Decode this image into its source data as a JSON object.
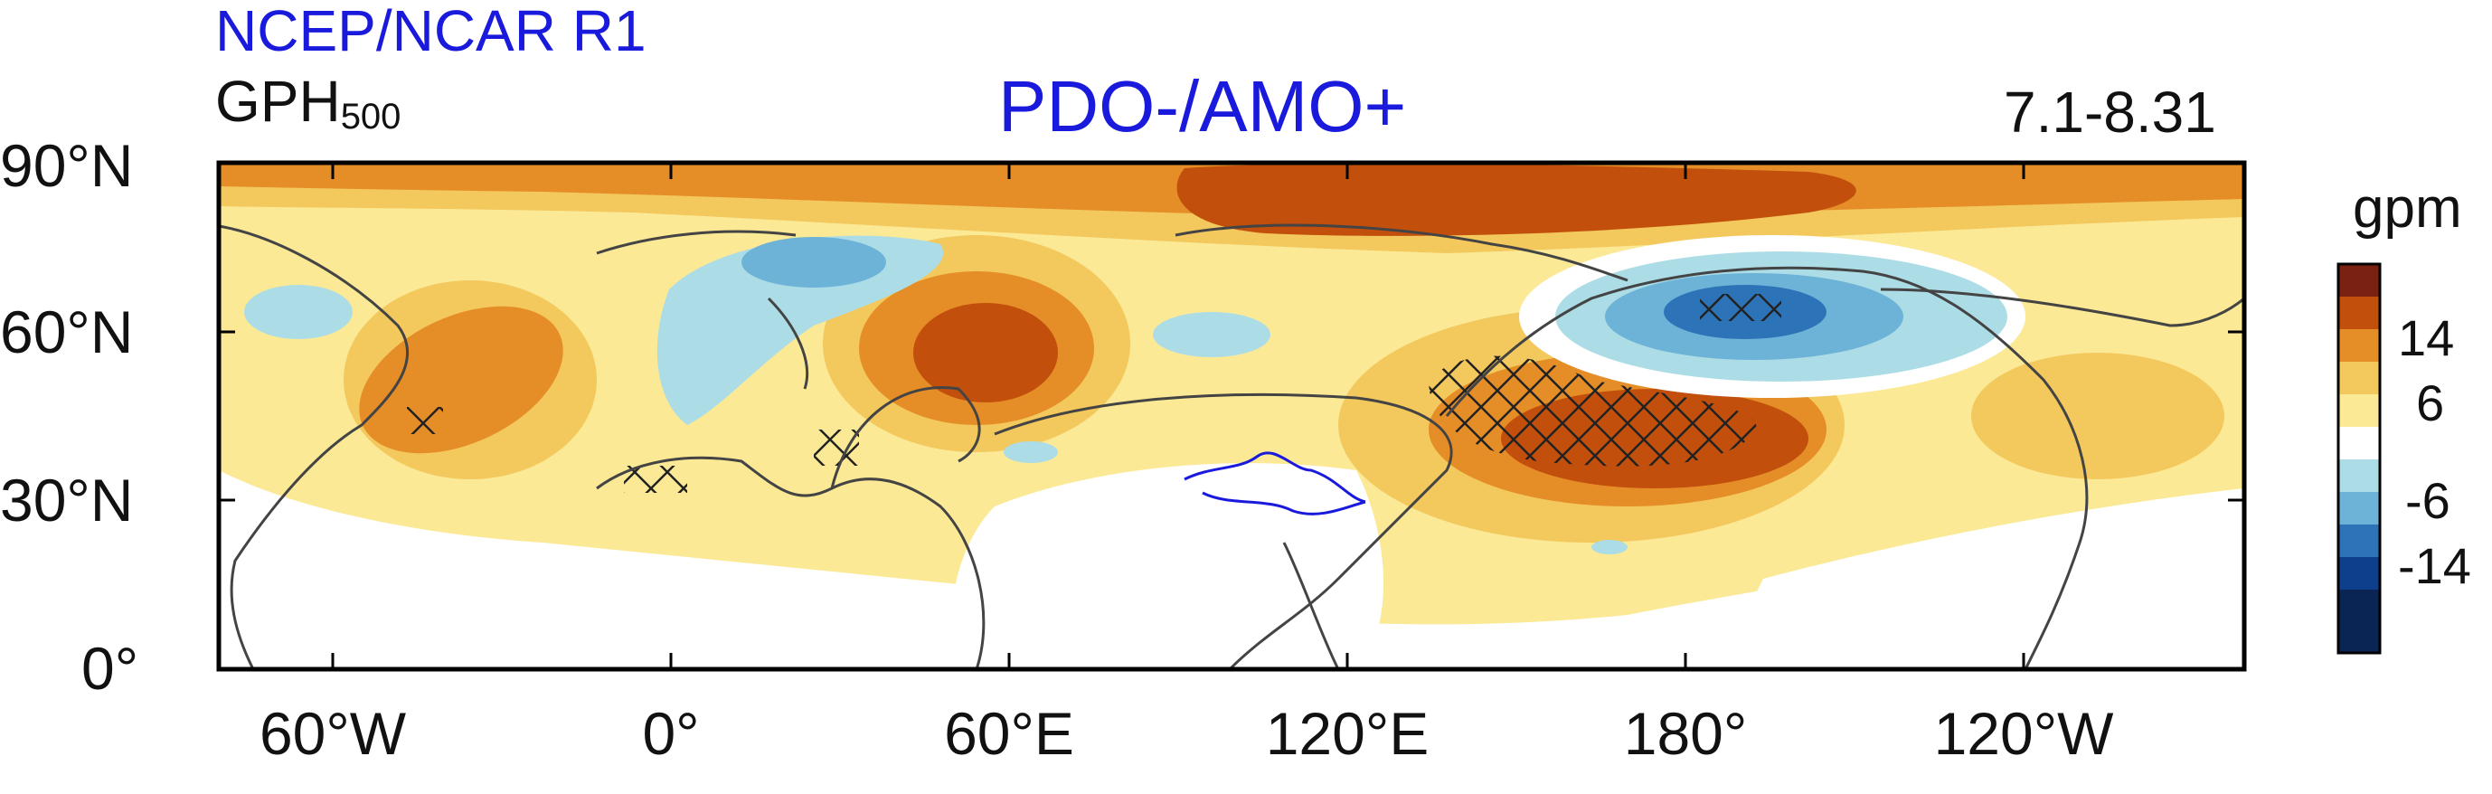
{
  "header": {
    "source": "NCEP/NCAR R1",
    "variable": "GPH",
    "variable_subscript": "500",
    "title": "PDO-/AMO+",
    "period": "7.1-8.31"
  },
  "axes": {
    "lat_labels": [
      "90°N",
      "60°N",
      "30°N",
      "0°"
    ],
    "lon_labels": [
      "60°W",
      "0°",
      "60°E",
      "120°E",
      "180°",
      "120°W"
    ]
  },
  "colorbar": {
    "unit": "gpm",
    "tick_labels": [
      "14",
      "6",
      "-6",
      "-14"
    ],
    "colors": [
      "#7b2112",
      "#c24f0b",
      "#e58e28",
      "#f3c85d",
      "#fbe996",
      "#ffffff",
      "#acdde6",
      "#6db3d7",
      "#2d73b8",
      "#0e3f8c",
      "#0a2454"
    ]
  },
  "colors": {
    "title_blue": "#1a1adc",
    "coastline": "#444444",
    "river": "#1a1adc"
  }
}
